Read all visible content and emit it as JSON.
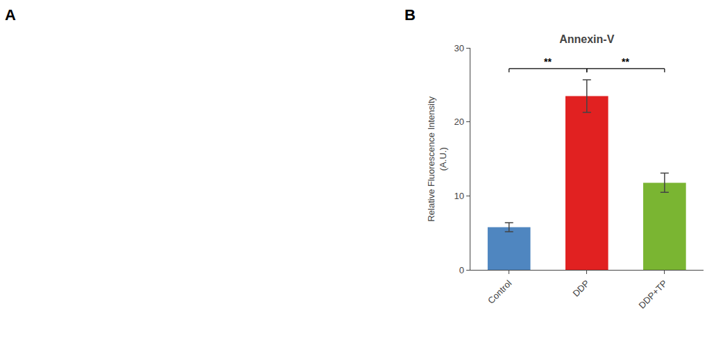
{
  "chart_data": {
    "type": "bar",
    "title": "Annexin-V",
    "ylabel": "Relative Fluorescence Intensity\n(A.U.)",
    "categories": [
      "Control",
      "DDP",
      "DDP+TP"
    ],
    "values": [
      5.8,
      23.5,
      11.8
    ],
    "errors": [
      0.6,
      2.2,
      1.3
    ],
    "colors": [
      "#4f86c0",
      "#e12121",
      "#7ab532"
    ],
    "ylim": [
      0,
      30
    ],
    "yticks": [
      0,
      10,
      20,
      30
    ],
    "grid": false,
    "annotations": [
      {
        "text": "**",
        "from": "Control",
        "to": "DDP",
        "y": 27.2
      },
      {
        "text": "**",
        "from": "DDP",
        "to": "DDP+TP",
        "y": 27.2
      }
    ],
    "panel_labels": [
      "A",
      "B"
    ]
  }
}
